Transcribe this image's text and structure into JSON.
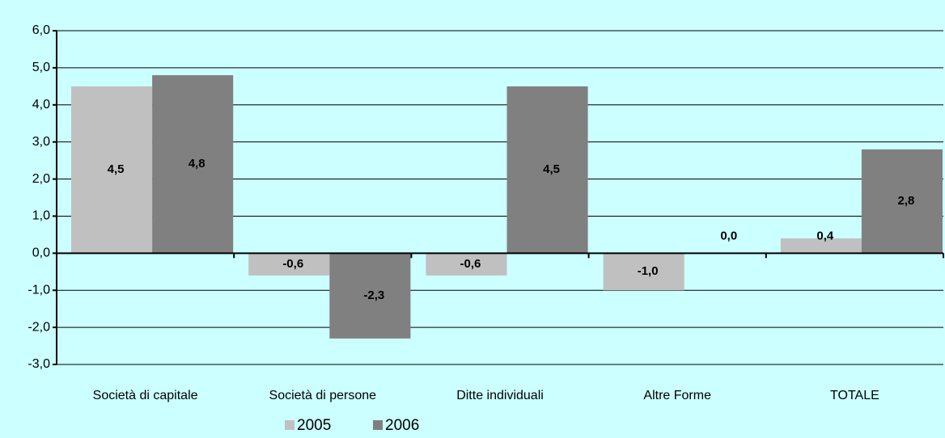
{
  "chart_data": {
    "type": "bar",
    "categories": [
      "Società di capitale",
      "Società di persone",
      "Ditte individuali",
      "Altre Forme",
      "TOTALE"
    ],
    "series": [
      {
        "name": "2005",
        "color": "#c0c0c0",
        "values": [
          4.5,
          -0.6,
          -0.6,
          -1.0,
          0.4
        ],
        "value_labels": [
          "4,5",
          "-0,6",
          "-0,6",
          "-1,0",
          "0,4"
        ]
      },
      {
        "name": "2006",
        "color": "#808080",
        "values": [
          4.8,
          -2.3,
          4.5,
          0.0,
          2.8
        ],
        "value_labels": [
          "4,8",
          "-2,3",
          "4,5",
          "0,0",
          "2,8"
        ]
      }
    ],
    "ylim": [
      -3,
      6
    ],
    "yticks": [
      {
        "value": -3,
        "label": "-3,0"
      },
      {
        "value": -2,
        "label": "-2,0"
      },
      {
        "value": -1,
        "label": "-1,0"
      },
      {
        "value": 0,
        "label": "0,0"
      },
      {
        "value": 1,
        "label": "1,0"
      },
      {
        "value": 2,
        "label": "2,0"
      },
      {
        "value": 3,
        "label": "3,0"
      },
      {
        "value": 4,
        "label": "4,0"
      },
      {
        "value": 5,
        "label": "5,0"
      },
      {
        "value": 6,
        "label": "6,0"
      }
    ],
    "grid": true,
    "legend": "bottom"
  }
}
